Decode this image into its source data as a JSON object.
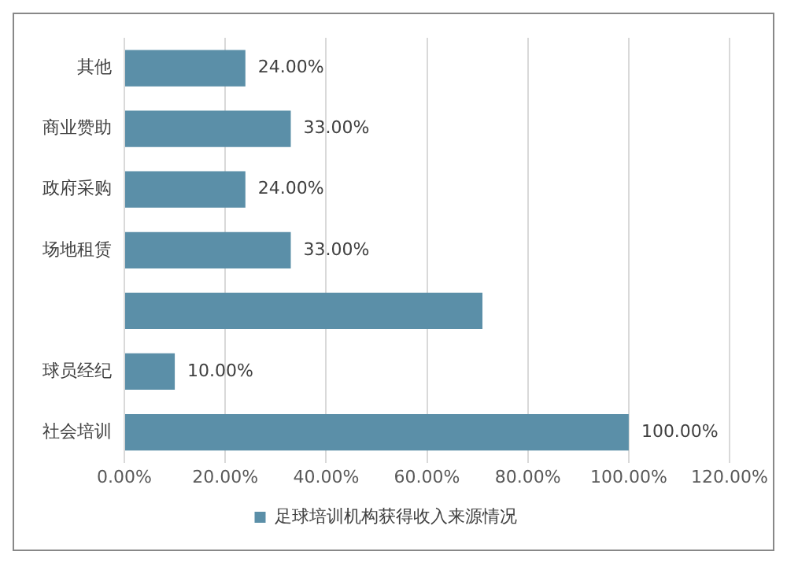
{
  "chart_data": {
    "type": "bar",
    "orientation": "horizontal",
    "categories": [
      "其他",
      "商业赞助",
      "政府采购",
      "场地租赁",
      null,
      "球员经纪",
      "社会培训"
    ],
    "series": [
      {
        "name": "足球培训机构获得收入来源情况",
        "color": "#5b8fa8",
        "values": [
          24,
          33,
          24,
          33,
          71,
          10,
          100
        ],
        "value_labels": [
          "24.00%",
          "33.00%",
          "24.00%",
          "33.00%",
          null,
          "10.00%",
          "100.00%"
        ]
      }
    ],
    "xlim": [
      0,
      120
    ],
    "xticks": [
      {
        "value": 0,
        "label": "0.00%"
      },
      {
        "value": 20,
        "label": "20.00%"
      },
      {
        "value": 40,
        "label": "40.00%"
      },
      {
        "value": 60,
        "label": "60.00%"
      },
      {
        "value": 80,
        "label": "80.00%"
      },
      {
        "value": 100,
        "label": "100.00%"
      },
      {
        "value": 120,
        "label": "120.00%"
      }
    ],
    "grid": "x",
    "legend": "bottom"
  }
}
